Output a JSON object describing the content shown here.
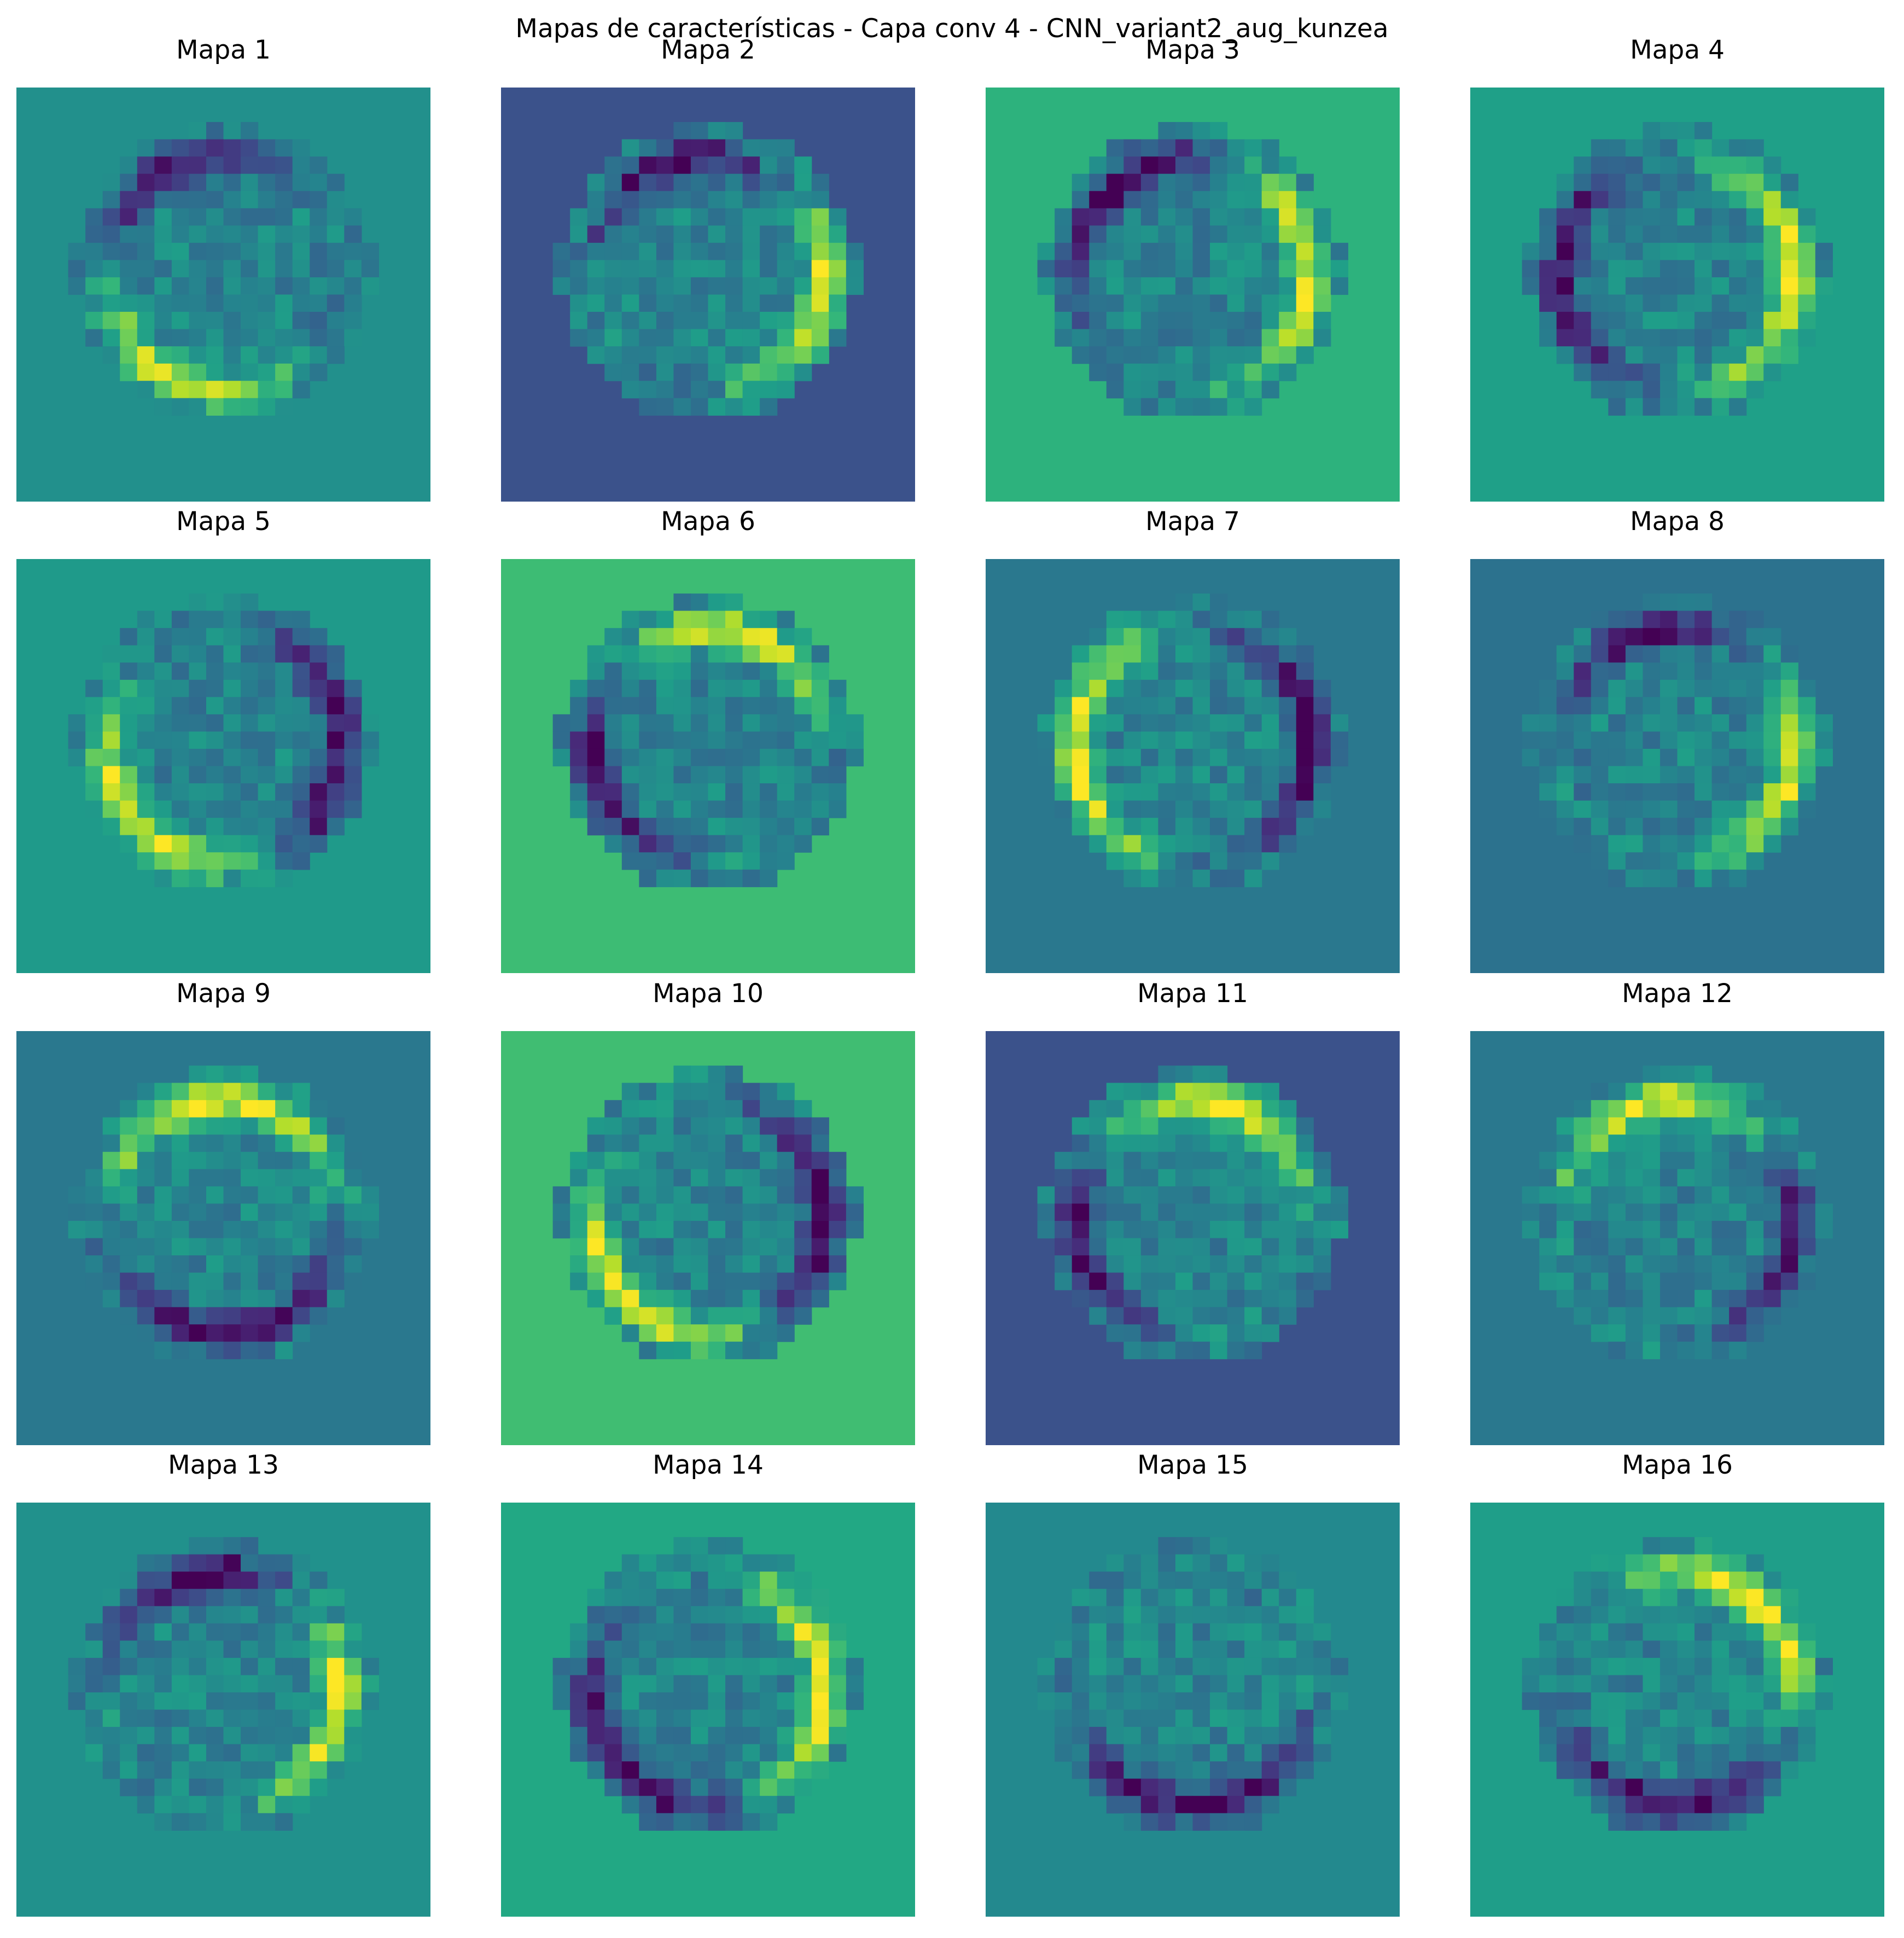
{
  "title": "Mapas de características - Capa conv 4 - CNN_variant2_aug_kunzea",
  "chart_data": {
    "type": "heatmap",
    "title": "Mapas de características - Capa conv 4 - CNN_variant2_aug_kunzea",
    "colormap": "viridis",
    "axes": "off",
    "grid_size": 24,
    "maps": [
      {
        "label": "Mapa 1",
        "bg": "#22908c",
        "ring_center": "#21a385",
        "bright_edge": "bottom-left",
        "dark_edge": "top-left",
        "center": [
          0.5,
          0.45
        ]
      },
      {
        "label": "Mapa 2",
        "bg": "#3b528b",
        "ring_center": "#31668e",
        "bright_edge": "right",
        "dark_edge": "top",
        "center": [
          0.5,
          0.45
        ]
      },
      {
        "label": "Mapa 3",
        "bg": "#2db27d",
        "ring_center": "#4ac16d",
        "bright_edge": "right",
        "dark_edge": "top-left",
        "center": [
          0.5,
          0.45
        ]
      },
      {
        "label": "Mapa 4",
        "bg": "#1fa088",
        "ring_center": "#35b779",
        "bright_edge": "right",
        "dark_edge": "left",
        "center": [
          0.5,
          0.45
        ]
      },
      {
        "label": "Mapa 5",
        "bg": "#1f9a8a",
        "ring_center": "#228d8d",
        "bright_edge": "bottom-left",
        "dark_edge": "right",
        "center": [
          0.5,
          0.45
        ]
      },
      {
        "label": "Mapa 6",
        "bg": "#3dbc74",
        "ring_center": "#27ad81",
        "bright_edge": "top",
        "dark_edge": "left",
        "center": [
          0.5,
          0.45
        ]
      },
      {
        "label": "Mapa 7",
        "bg": "#2a788e",
        "ring_center": "#25858e",
        "bright_edge": "left",
        "dark_edge": "right",
        "center": [
          0.5,
          0.45
        ]
      },
      {
        "label": "Mapa 8",
        "bg": "#2c728e",
        "ring_center": "#3e4a89",
        "bright_edge": "right",
        "dark_edge": "top",
        "center": [
          0.5,
          0.45
        ]
      },
      {
        "label": "Mapa 9",
        "bg": "#2a788e",
        "ring_center": "#25858e",
        "bright_edge": "top",
        "dark_edge": "bottom",
        "center": [
          0.5,
          0.45
        ]
      },
      {
        "label": "Mapa 10",
        "bg": "#40bd72",
        "ring_center": "#2db27d",
        "bright_edge": "bottom-left",
        "dark_edge": "right",
        "center": [
          0.5,
          0.45
        ]
      },
      {
        "label": "Mapa 11",
        "bg": "#3b528b",
        "ring_center": "#433e85",
        "bright_edge": "top",
        "dark_edge": "left",
        "center": [
          0.5,
          0.45
        ]
      },
      {
        "label": "Mapa 12",
        "bg": "#2a788e",
        "ring_center": "#25858e",
        "bright_edge": "top",
        "dark_edge": "right",
        "center": [
          0.5,
          0.45
        ]
      },
      {
        "label": "Mapa 13",
        "bg": "#21918c",
        "ring_center": "#228c8d",
        "bright_edge": "right",
        "dark_edge": "top",
        "center": [
          0.5,
          0.45
        ]
      },
      {
        "label": "Mapa 14",
        "bg": "#22a884",
        "ring_center": "#35b779",
        "bright_edge": "right",
        "dark_edge": "bottom-left",
        "center": [
          0.5,
          0.45
        ]
      },
      {
        "label": "Mapa 15",
        "bg": "#23898e",
        "ring_center": "#4ac16d",
        "bright_edge": "center",
        "dark_edge": "bottom",
        "center": [
          0.5,
          0.45
        ]
      },
      {
        "label": "Mapa 16",
        "bg": "#1f9e89",
        "ring_center": "#25858e",
        "bright_edge": "top-right",
        "dark_edge": "bottom",
        "center": [
          0.5,
          0.45
        ]
      }
    ]
  }
}
